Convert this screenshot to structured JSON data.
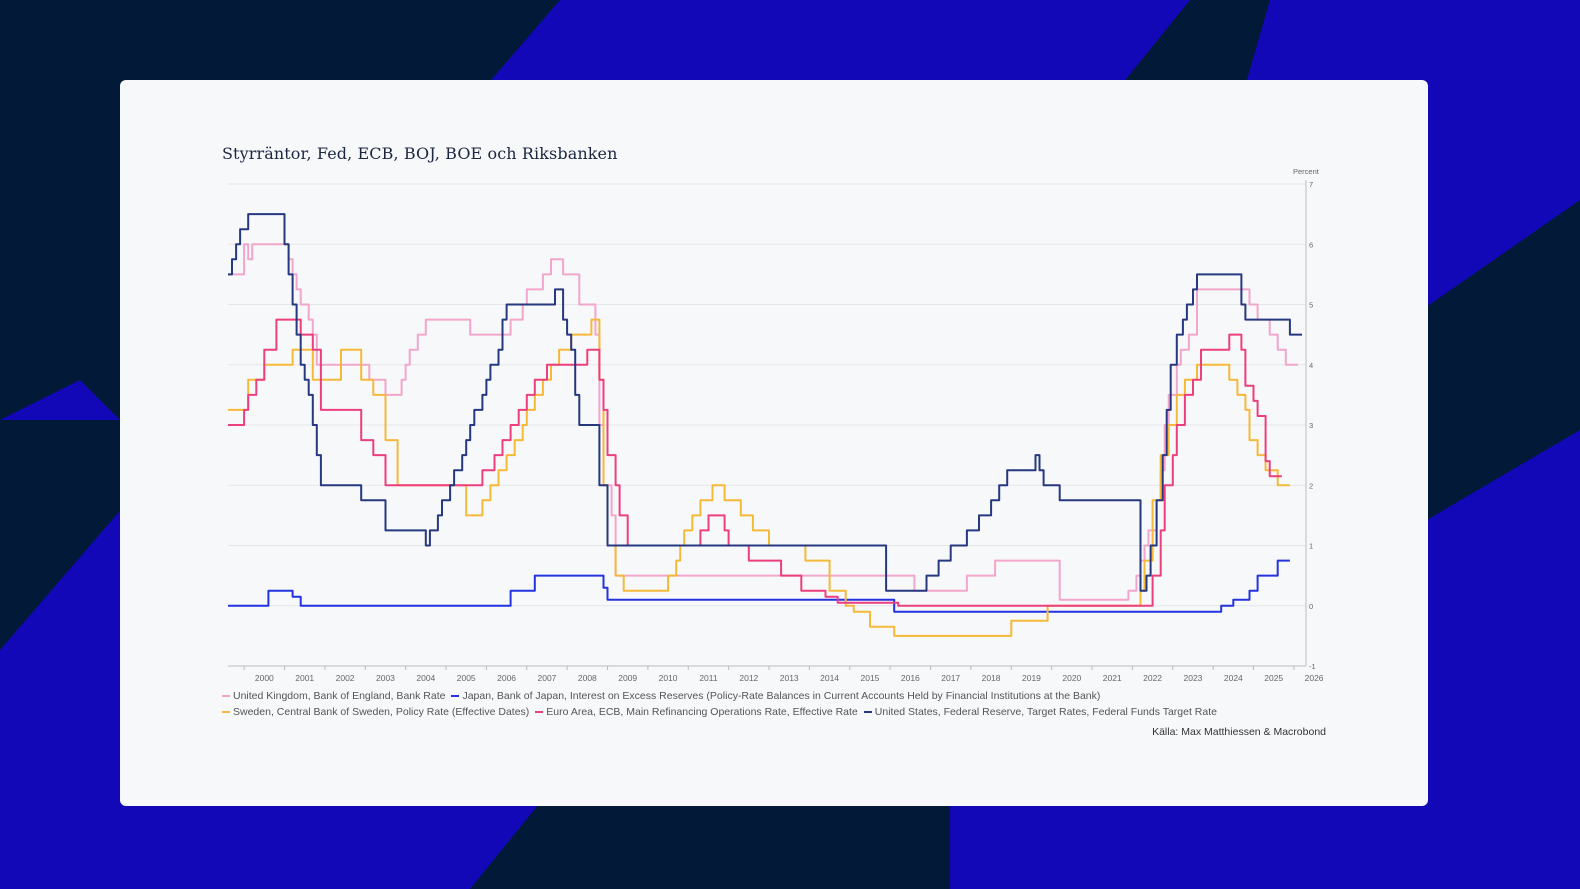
{
  "colors": {
    "background": "#021a38",
    "stripe": "#1208b8",
    "card": "#f7f8f9"
  },
  "chart_data": {
    "type": "line",
    "title": "Styrräntor, Fed, ECB, BOJ, BOE och Riksbanken",
    "ylabel": "Percent",
    "xlabel": "",
    "xlim": [
      1999.6,
      2026.3
    ],
    "ylim": [
      -1,
      7
    ],
    "yticks": [
      -1,
      0,
      1,
      2,
      3,
      4,
      5,
      6,
      7
    ],
    "xticks": [
      2000,
      2001,
      2002,
      2003,
      2004,
      2005,
      2006,
      2007,
      2008,
      2009,
      2010,
      2011,
      2012,
      2013,
      2014,
      2015,
      2016,
      2017,
      2018,
      2019,
      2020,
      2021,
      2022,
      2023,
      2024,
      2025,
      2026
    ],
    "grid": true,
    "y_axis_side": "right",
    "source": "Källa: Max Matthiessen & Macrobond",
    "series": [
      {
        "name": "United Kingdom, Bank of England, Bank Rate",
        "color": "#f2a6cc",
        "legend_row": 0,
        "x": [
          1999.6,
          2000.0,
          2000.1,
          2000.2,
          2000.9,
          2001.1,
          2001.2,
          2001.3,
          2001.4,
          2001.6,
          2001.7,
          2001.8,
          2003.1,
          2003.5,
          2003.9,
          2004.0,
          2004.1,
          2004.3,
          2004.5,
          2004.7,
          2005.6,
          2006.6,
          2006.9,
          2007.0,
          2007.4,
          2007.6,
          2007.9,
          2008.3,
          2008.7,
          2008.8,
          2008.9,
          2009.1,
          2009.2,
          2016.6,
          2017.9,
          2018.6,
          2020.2,
          2020.3,
          2021.9,
          2022.1,
          2022.2,
          2022.3,
          2022.4,
          2022.6,
          2022.7,
          2022.8,
          2022.9,
          2023.1,
          2023.2,
          2023.4,
          2023.6,
          2024.6,
          2024.9,
          2025.1,
          2025.4,
          2025.6,
          2025.8
        ],
        "y": [
          5.5,
          6.0,
          5.75,
          6.0,
          6.0,
          5.75,
          5.5,
          5.25,
          5.0,
          4.75,
          4.5,
          4.0,
          3.75,
          3.5,
          3.75,
          4.0,
          4.25,
          4.5,
          4.75,
          4.75,
          4.5,
          4.75,
          5.0,
          5.25,
          5.5,
          5.75,
          5.5,
          5.0,
          4.5,
          3.0,
          2.0,
          1.5,
          0.5,
          0.25,
          0.5,
          0.75,
          0.1,
          0.1,
          0.25,
          0.5,
          0.75,
          1.0,
          1.25,
          1.75,
          2.25,
          3.0,
          3.5,
          4.0,
          4.25,
          4.5,
          5.25,
          5.25,
          5.0,
          4.75,
          4.5,
          4.25,
          4.0
        ]
      },
      {
        "name": "Japan, Bank of Japan, Interest on Excess Reserves (Policy-Rate Balances in Current Accounts Held by Financial Institutions at the Bank)",
        "color": "#2433e0",
        "legend_row": 0,
        "x": [
          1999.6,
          2000.6,
          2001.2,
          2001.4,
          2006.6,
          2007.2,
          2008.9,
          2009.0,
          2016.1,
          2024.2,
          2024.5,
          2024.9,
          2025.1,
          2025.6
        ],
        "y": [
          0.0,
          0.25,
          0.15,
          0.0,
          0.25,
          0.5,
          0.3,
          0.1,
          -0.1,
          0.0,
          0.1,
          0.25,
          0.5,
          0.75
        ]
      },
      {
        "name": "Sweden, Central Bank of Sweden, Policy Rate (Effective Dates)",
        "color": "#f5b93a",
        "legend_row": 1,
        "x": [
          1999.6,
          2000.1,
          2000.5,
          2001.2,
          2001.7,
          2002.4,
          2002.9,
          2003.2,
          2003.5,
          2003.8,
          2005.5,
          2005.9,
          2006.1,
          2006.3,
          2006.5,
          2006.7,
          2006.9,
          2007.0,
          2007.2,
          2007.4,
          2007.6,
          2007.8,
          2008.1,
          2008.6,
          2008.8,
          2008.9,
          2009.0,
          2009.2,
          2009.4,
          2009.6,
          2010.5,
          2010.7,
          2010.8,
          2010.9,
          2011.1,
          2011.3,
          2011.6,
          2011.9,
          2012.3,
          2012.6,
          2013.0,
          2013.9,
          2014.5,
          2014.9,
          2015.1,
          2015.5,
          2016.1,
          2019.0,
          2019.9,
          2020.0,
          2022.2,
          2022.3,
          2022.5,
          2022.7,
          2022.9,
          2023.1,
          2023.3,
          2023.6,
          2024.4,
          2024.6,
          2024.8,
          2024.9,
          2025.1,
          2025.3,
          2025.6
        ],
        "y": [
          3.25,
          3.75,
          4.0,
          4.25,
          3.75,
          4.25,
          3.75,
          3.5,
          2.75,
          2.0,
          1.5,
          1.75,
          2.0,
          2.25,
          2.5,
          2.75,
          3.0,
          3.25,
          3.5,
          3.75,
          4.0,
          4.25,
          4.5,
          4.75,
          3.75,
          2.0,
          1.0,
          0.5,
          0.25,
          0.25,
          0.5,
          0.75,
          1.0,
          1.25,
          1.5,
          1.75,
          2.0,
          1.75,
          1.5,
          1.25,
          1.0,
          0.75,
          0.25,
          0.0,
          -0.1,
          -0.35,
          -0.5,
          -0.25,
          0.0,
          0.0,
          0.25,
          0.75,
          1.75,
          2.5,
          3.0,
          3.5,
          3.75,
          4.0,
          3.75,
          3.5,
          3.25,
          2.75,
          2.5,
          2.25,
          2.0
        ]
      },
      {
        "name": "Euro Area, ECB, Main Refinancing Operations Rate, Effective Rate",
        "color": "#ec3f7f",
        "legend_row": 1,
        "x": [
          1999.6,
          2000.0,
          2000.1,
          2000.3,
          2000.5,
          2000.8,
          2001.4,
          2001.7,
          2001.9,
          2002.9,
          2003.2,
          2003.5,
          2005.9,
          2006.2,
          2006.4,
          2006.6,
          2006.8,
          2007.0,
          2007.2,
          2007.5,
          2008.5,
          2008.8,
          2008.9,
          2009.0,
          2009.2,
          2009.3,
          2009.5,
          2011.3,
          2011.5,
          2011.9,
          2012.0,
          2012.5,
          2013.3,
          2013.8,
          2014.4,
          2014.7,
          2016.2,
          2022.5,
          2022.7,
          2022.8,
          2023.0,
          2023.1,
          2023.3,
          2023.5,
          2023.7,
          2024.4,
          2024.7,
          2024.8,
          2025.0,
          2025.1,
          2025.3,
          2025.4
        ],
        "y": [
          3.0,
          3.25,
          3.5,
          3.75,
          4.25,
          4.75,
          4.5,
          4.25,
          3.25,
          2.75,
          2.5,
          2.0,
          2.25,
          2.5,
          2.75,
          3.0,
          3.25,
          3.5,
          3.75,
          4.0,
          4.25,
          3.75,
          3.25,
          2.5,
          2.0,
          1.5,
          1.0,
          1.25,
          1.5,
          1.25,
          1.0,
          0.75,
          0.5,
          0.25,
          0.15,
          0.05,
          0.0,
          0.5,
          1.25,
          2.0,
          2.5,
          3.0,
          3.5,
          3.75,
          4.25,
          4.5,
          4.25,
          3.65,
          3.4,
          3.15,
          2.4,
          2.15
        ]
      },
      {
        "name": "United States, Federal Reserve, Target Rates, Federal Funds Target Rate",
        "color": "#26387f",
        "legend_row": 1,
        "x": [
          1999.6,
          1999.7,
          1999.8,
          1999.9,
          2000.1,
          2000.2,
          2000.4,
          2001.0,
          2001.1,
          2001.2,
          2001.3,
          2001.4,
          2001.5,
          2001.6,
          2001.7,
          2001.8,
          2001.9,
          2002.9,
          2003.5,
          2004.5,
          2004.6,
          2004.8,
          2004.9,
          2005.1,
          2005.2,
          2005.4,
          2005.5,
          2005.6,
          2005.7,
          2005.9,
          2006.0,
          2006.1,
          2006.3,
          2006.4,
          2006.5,
          2007.7,
          2007.9,
          2008.0,
          2008.1,
          2008.2,
          2008.3,
          2008.8,
          2009.0,
          2015.9,
          2016.9,
          2017.2,
          2017.5,
          2017.9,
          2018.2,
          2018.5,
          2018.7,
          2018.9,
          2019.6,
          2019.7,
          2019.8,
          2020.2,
          2022.2,
          2022.35,
          2022.45,
          2022.6,
          2022.75,
          2022.85,
          2022.95,
          2023.1,
          2023.25,
          2023.35,
          2023.5,
          2023.6,
          2024.7,
          2024.8,
          2025.9
        ],
        "y": [
          5.5,
          5.75,
          6.0,
          6.25,
          6.5,
          6.5,
          6.5,
          6.0,
          5.5,
          5.0,
          4.5,
          4.0,
          3.75,
          3.5,
          3.0,
          2.5,
          2.0,
          1.75,
          1.25,
          1.0,
          1.25,
          1.5,
          1.75,
          2.0,
          2.25,
          2.5,
          2.75,
          3.0,
          3.25,
          3.5,
          3.75,
          4.0,
          4.25,
          4.75,
          5.0,
          5.25,
          4.75,
          4.5,
          4.25,
          3.5,
          3.0,
          2.0,
          1.0,
          0.25,
          0.5,
          0.75,
          1.0,
          1.25,
          1.5,
          1.75,
          2.0,
          2.25,
          2.5,
          2.25,
          2.0,
          1.75,
          0.25,
          0.5,
          1.0,
          1.75,
          2.5,
          3.25,
          4.0,
          4.5,
          4.75,
          5.0,
          5.25,
          5.5,
          5.0,
          4.75,
          4.5
        ]
      }
    ]
  }
}
